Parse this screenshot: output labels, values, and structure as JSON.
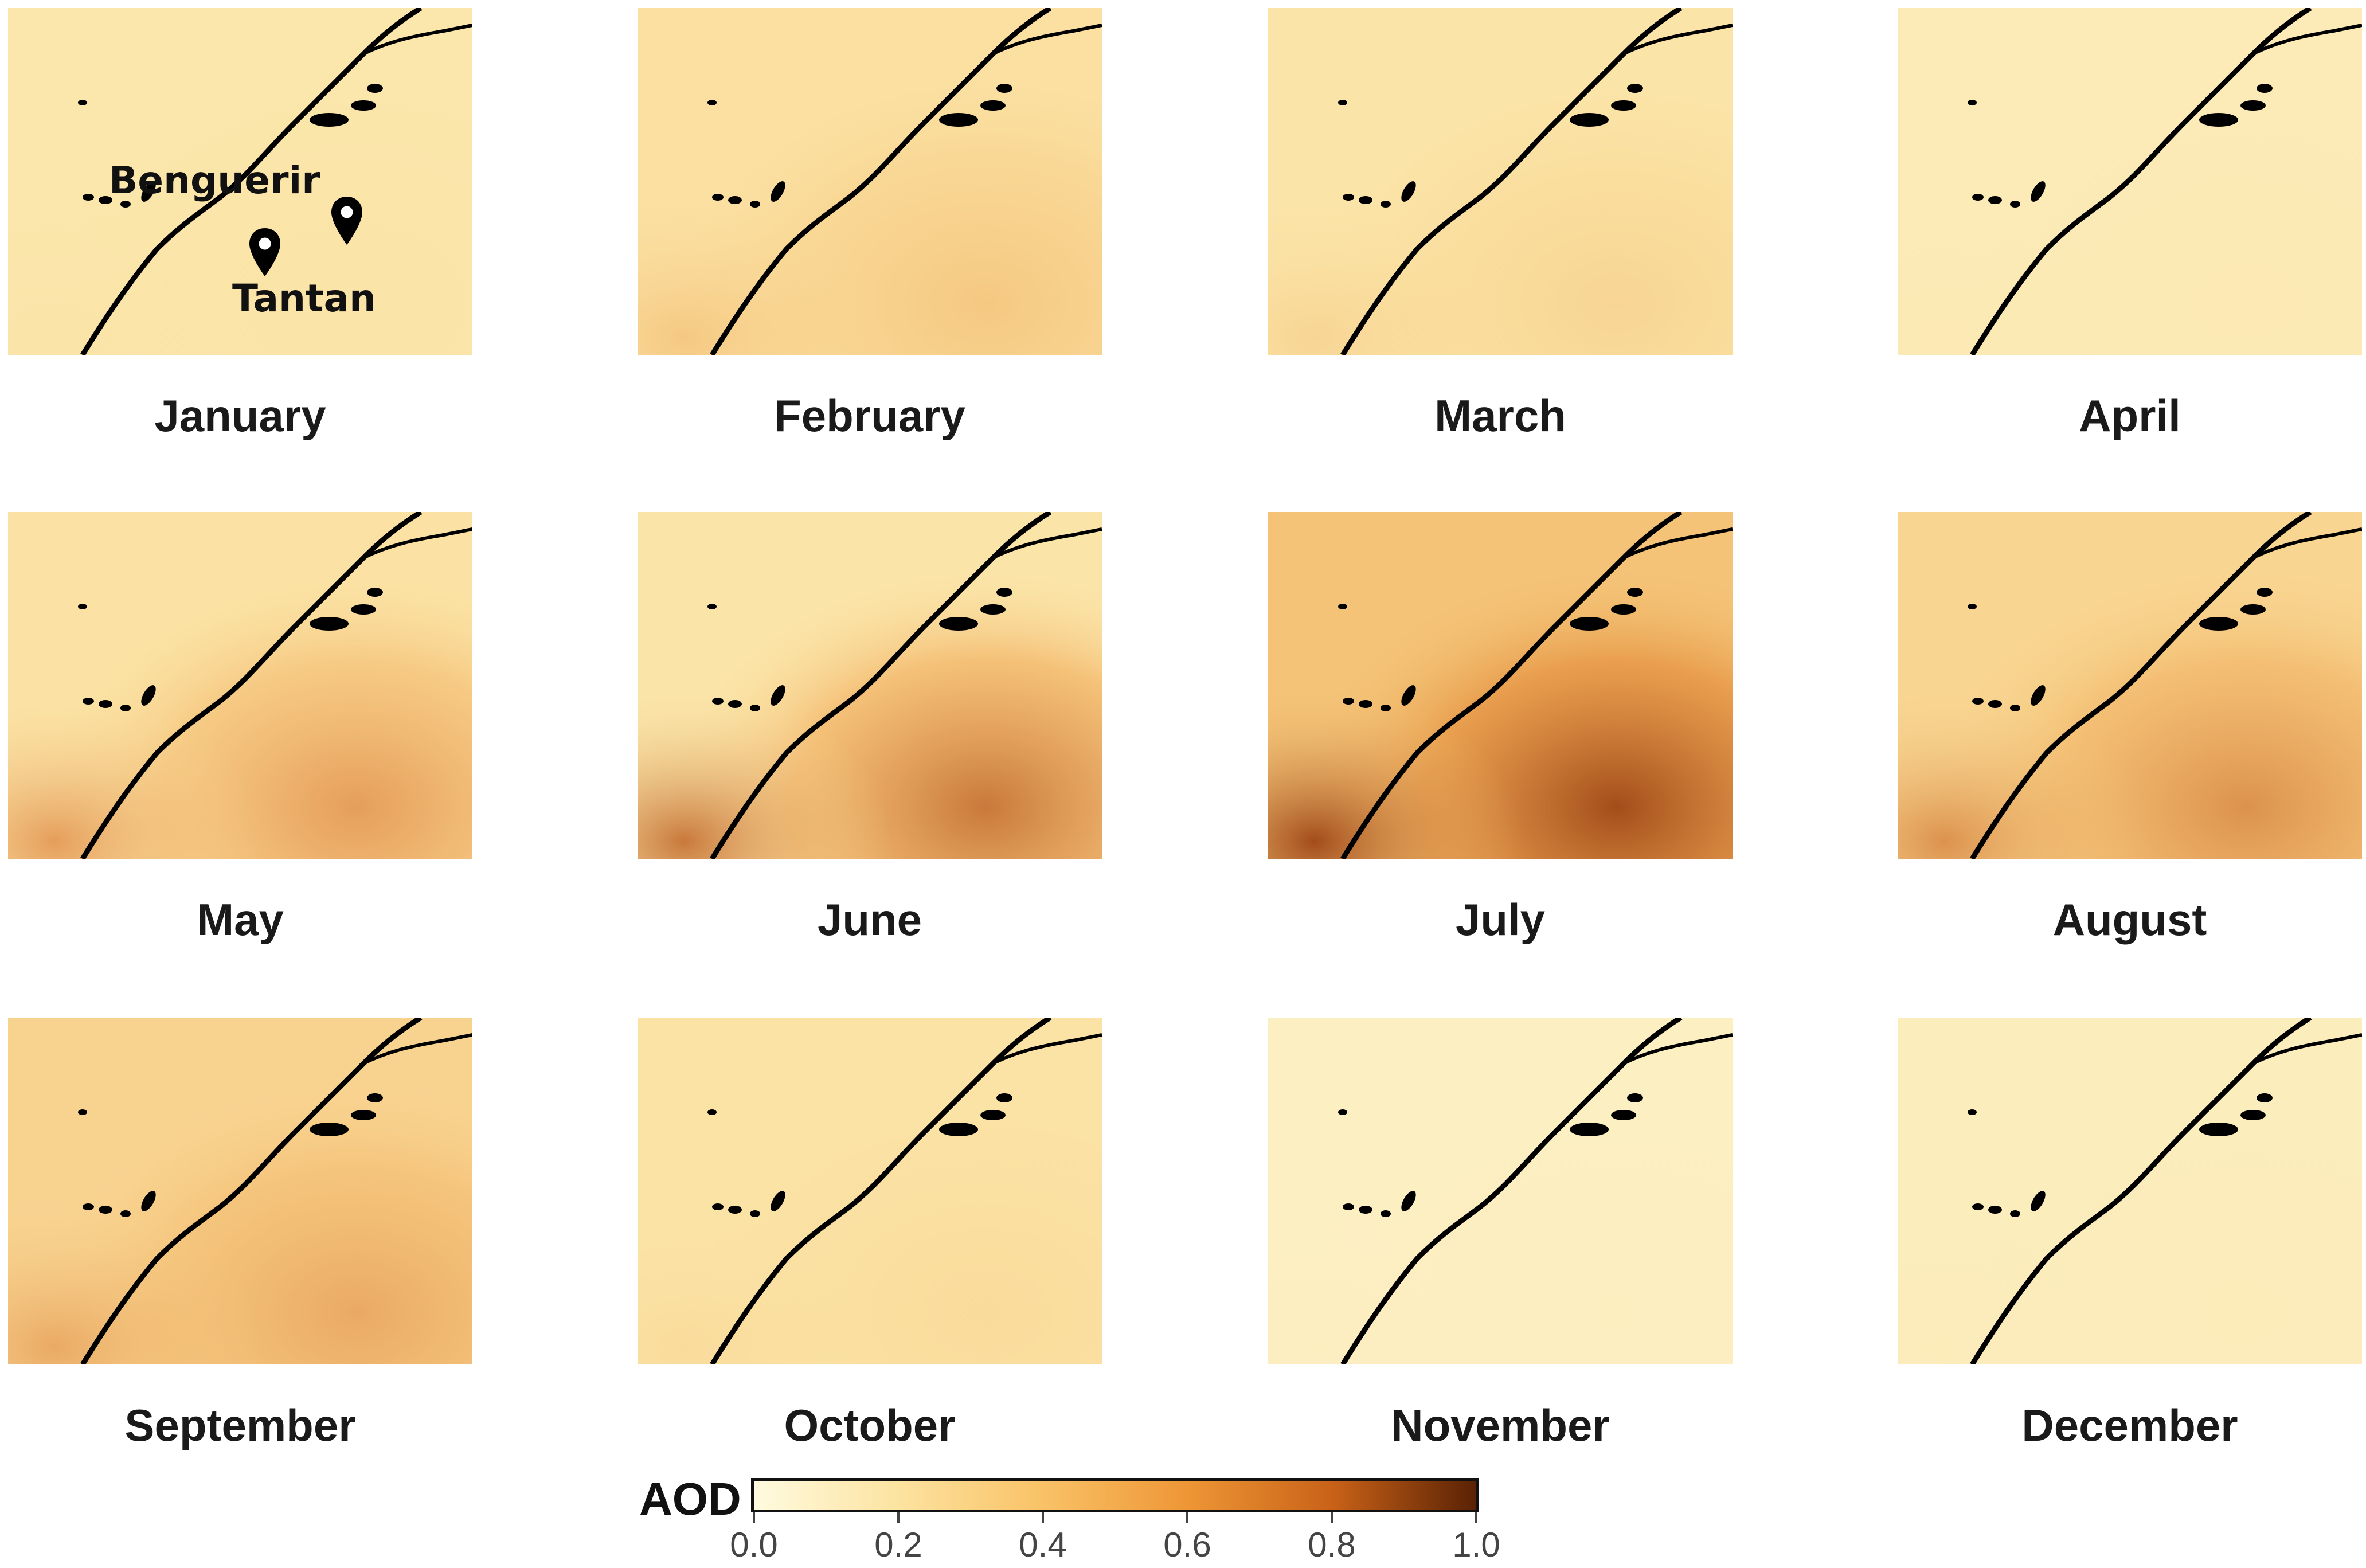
{
  "months": [
    {
      "label": "January",
      "base": "#fbe6ab",
      "hot": "#f7cf7c",
      "hot2": "#f0b35d",
      "intensity": 0.05
    },
    {
      "label": "February",
      "base": "#fbe0a2",
      "hot": "#f3bd6b",
      "hot2": "#ea9c45",
      "intensity": 0.35
    },
    {
      "label": "March",
      "base": "#fbe4a8",
      "hot": "#f5c674",
      "hot2": "#ec9f49",
      "intensity": 0.22
    },
    {
      "label": "April",
      "base": "#fcebb7",
      "hot": "#f8d892",
      "hot2": "#f3c172",
      "intensity": 0.05
    },
    {
      "label": "May",
      "base": "#fbe2a4",
      "hot": "#f0aa58",
      "hot2": "#d7702b",
      "intensity": 0.6
    },
    {
      "label": "June",
      "base": "#fbe4a8",
      "hot": "#ee9f4a",
      "hot2": "#b85517",
      "intensity": 0.75
    },
    {
      "label": "July",
      "base": "#f4c377",
      "hot": "#e28a37",
      "hot2": "#9a3f10",
      "intensity": 0.9
    },
    {
      "label": "August",
      "base": "#f8d591",
      "hot": "#eea14d",
      "hot2": "#c9651f",
      "intensity": 0.6
    },
    {
      "label": "September",
      "base": "#f8d390",
      "hot": "#efa653",
      "hot2": "#d8772f",
      "intensity": 0.45
    },
    {
      "label": "October",
      "base": "#fbe3a6",
      "hot": "#f6ca80",
      "hot2": "#efb161",
      "intensity": 0.15
    },
    {
      "label": "November",
      "base": "#fcefc2",
      "hot": "#fae1a4",
      "hot2": "#f6cf87",
      "intensity": 0.05
    },
    {
      "label": "December",
      "base": "#fcedbd",
      "hot": "#fae0a2",
      "hot2": "#f5cc84",
      "intensity": 0.05
    }
  ],
  "places": {
    "benguerir": "Benguerir",
    "tantan": "Tantan"
  },
  "legend": {
    "title": "AOD",
    "ticks": [
      "0.0",
      "0.2",
      "0.4",
      "0.6",
      "0.8",
      "1.0"
    ],
    "colors": [
      "#fffbe0",
      "#fce3a0",
      "#f9c266",
      "#ee9636",
      "#c96218",
      "#5a2204"
    ]
  }
}
